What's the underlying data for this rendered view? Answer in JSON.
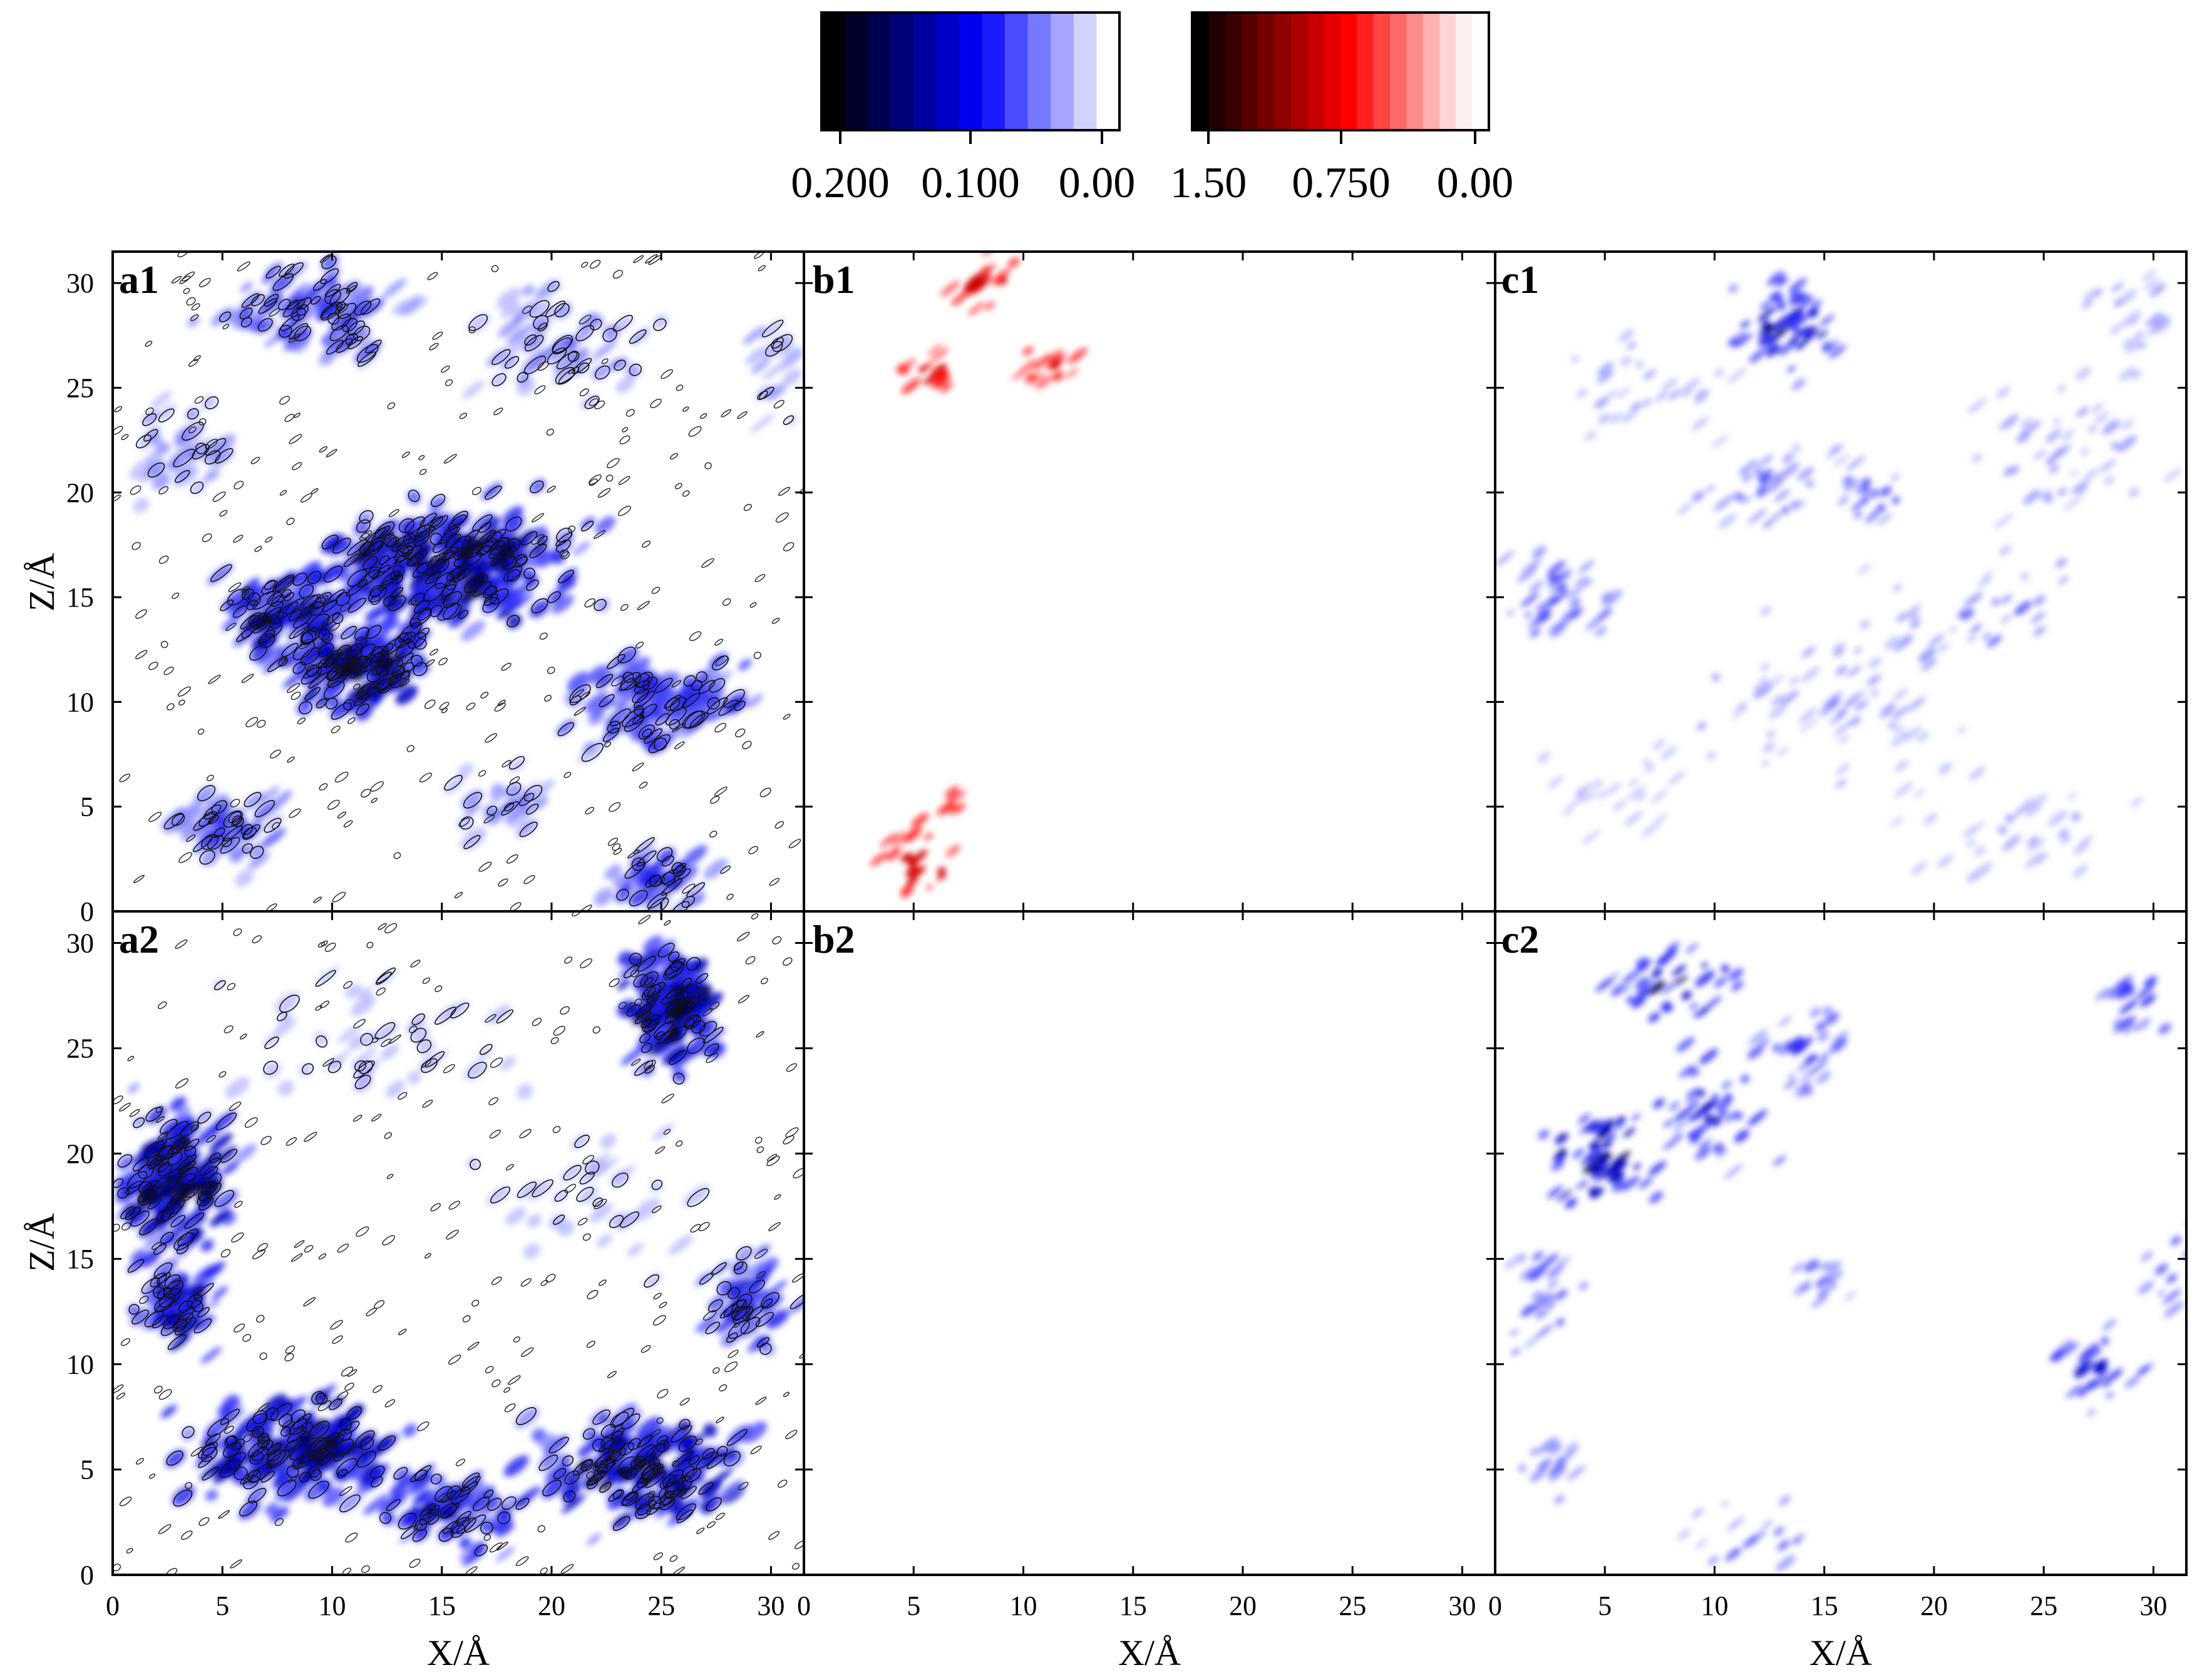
{
  "chart_data": {
    "type": "heatmap",
    "layout": "2 rows x 3 columns of density maps",
    "colorbars": [
      {
        "name": "blue",
        "colors": [
          "#000000",
          "#00002a",
          "#000050",
          "#000078",
          "#0000a0",
          "#0000c8",
          "#0000f0",
          "#1a1aff",
          "#4b4bff",
          "#7878ff",
          "#a5a5ff",
          "#d2d2ff",
          "#ffffff"
        ],
        "ticks": [
          "0.200",
          "0.100",
          "0.00"
        ],
        "range": [
          0.2,
          0.0
        ]
      },
      {
        "name": "red",
        "colors": [
          "#000000",
          "#200000",
          "#3c0000",
          "#580000",
          "#740000",
          "#900000",
          "#ac0000",
          "#c80000",
          "#e40000",
          "#ff0000",
          "#ff2020",
          "#ff4444",
          "#ff6868",
          "#ff8c8c",
          "#ffb0b0",
          "#ffd4d4",
          "#fff0f0",
          "#ffffff"
        ],
        "ticks": [
          "1.50",
          "0.750",
          "0.00"
        ],
        "range": [
          1.5,
          0.0
        ]
      }
    ],
    "xlabel": "X/Å",
    "ylabel": "Z/Å",
    "xticks": [
      "0",
      "5",
      "10",
      "15",
      "20",
      "25",
      "30"
    ],
    "yticks": [
      "0",
      "5",
      "10",
      "15",
      "20",
      "25",
      "30"
    ],
    "xlim": [
      0,
      31.5
    ],
    "ylim": [
      0,
      31.5
    ],
    "panels": [
      {
        "label": "a1",
        "colormap": "blue",
        "contours": true,
        "pattern": "dense band at Z≈10–22 with patches at top and lower corners"
      },
      {
        "label": "b1",
        "colormap": "red",
        "contours": false,
        "pattern": "sparse spots near X≈3–15 at top (Z≈23–31) and bottom (Z≈0–7)"
      },
      {
        "label": "c1",
        "colormap": "blue",
        "contours": false,
        "pattern": "scattered light streaks across the whole area, densest near X≈12–15, Z≈25–31"
      },
      {
        "label": "a2",
        "colormap": "blue",
        "contours": true,
        "pattern": "dense regions at Z≈0–12 bottom band, left edge Z≈12–26, top-right X≈22–28 Z≈22–31"
      },
      {
        "label": "b2",
        "colormap": "red",
        "contours": false,
        "pattern": "empty"
      },
      {
        "label": "c2",
        "colormap": "blue",
        "contours": false,
        "pattern": "clusters near X≈3–12 Z≈15–31, right side X≈25–31 Z≈8–14 and Z≈24–29"
      }
    ]
  }
}
